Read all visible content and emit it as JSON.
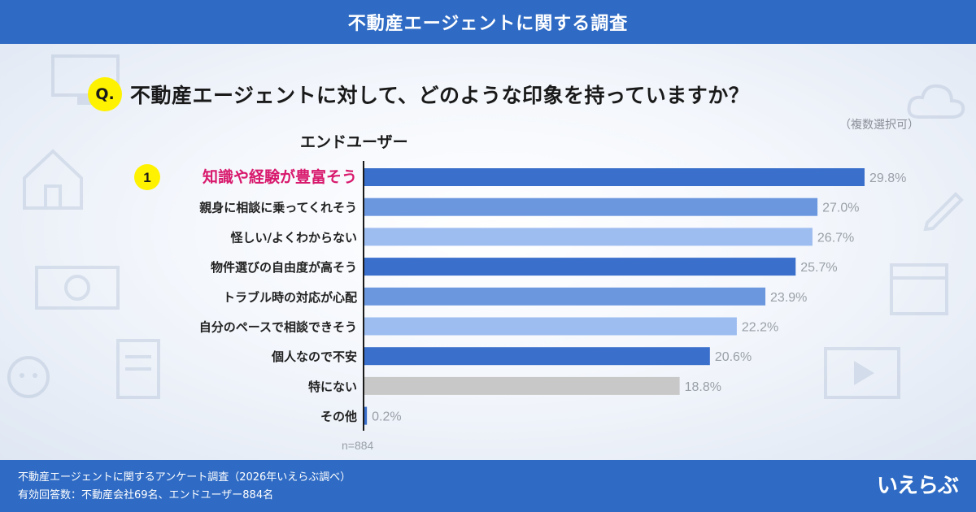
{
  "header": {
    "title": "不動産エージェントに関する調査"
  },
  "question": {
    "badge": "Q.",
    "text": "不動産エージェントに対して、どのような印象を持っていますか？",
    "note": "（複数選択可）"
  },
  "subtitle": "エンドユーザー",
  "chart_data": {
    "type": "bar",
    "orientation": "horizontal",
    "title": "不動産エージェントに対して、どのような印象を持っていますか？",
    "series_name": "エンドユーザー",
    "categories": [
      "知識や経験が豊富そう",
      "親身に相談に乗ってくれそう",
      "怪しい/よくわからない",
      "物件選びの自由度が高そう",
      "トラブル時の対応が心配",
      "自分のペースで相談できそう",
      "個人なので不安",
      "特にない",
      "その他"
    ],
    "values": [
      29.8,
      27.0,
      26.7,
      25.7,
      23.9,
      22.2,
      20.6,
      18.8,
      0.2
    ],
    "value_labels": [
      "29.8%",
      "27.0%",
      "26.7%",
      "25.7%",
      "23.9%",
      "22.2%",
      "20.6%",
      "18.8%",
      "0.2%"
    ],
    "colors": [
      "#3a6fcb",
      "#6b97df",
      "#9dbcf0",
      "#3a6fcb",
      "#6b97df",
      "#9dbcf0",
      "#3a6fcb",
      "#c8c8c8",
      "#3a6fcb"
    ],
    "rank_badge": "1",
    "highlight_color": "#d8196d",
    "sample_size": "n=884",
    "xlim": [
      0,
      30
    ]
  },
  "footer": {
    "line1": "不動産エージェントに関するアンケート調査（2026年いえらぶ調べ）",
    "line2": "有効回答数：不動産会社69名、エンドユーザー884名",
    "logo": "いえらぶ"
  }
}
